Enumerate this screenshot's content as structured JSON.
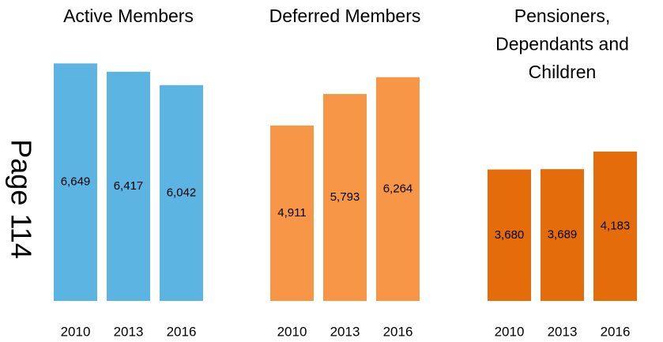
{
  "page_label": "Page 114",
  "chart_data": [
    {
      "type": "bar",
      "title": "Active Members",
      "categories": [
        "2010",
        "2013",
        "2016"
      ],
      "values": [
        6649,
        6417,
        6042
      ],
      "value_labels": [
        "6,649",
        "6,417",
        "6,042"
      ],
      "color": "#5cb4e2",
      "ylim": [
        0,
        6700
      ]
    },
    {
      "type": "bar",
      "title": "Deferred Members",
      "categories": [
        "2010",
        "2013",
        "2016"
      ],
      "values": [
        4911,
        5793,
        6264
      ],
      "value_labels": [
        "4,911",
        "5,793",
        "6,264"
      ],
      "color": "#f79646",
      "ylim": [
        0,
        6700
      ]
    },
    {
      "type": "bar",
      "title": "Pensioners,\nDependants and\nChildren",
      "categories": [
        "2010",
        "2013",
        "2016"
      ],
      "values": [
        3680,
        3689,
        4183
      ],
      "value_labels": [
        "3,680",
        "3,689",
        "4,183"
      ],
      "color": "#e46c0a",
      "ylim": [
        0,
        6700
      ]
    }
  ]
}
